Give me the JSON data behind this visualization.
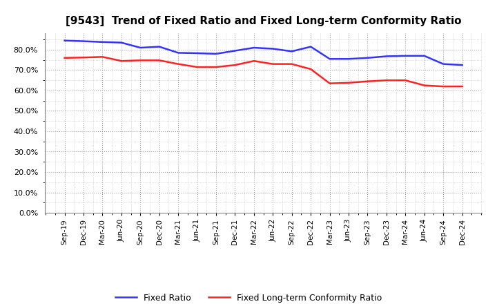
{
  "title": "[9543]  Trend of Fixed Ratio and Fixed Long-term Conformity Ratio",
  "x_labels": [
    "Sep-19",
    "Dec-19",
    "Mar-20",
    "Jun-20",
    "Sep-20",
    "Dec-20",
    "Mar-21",
    "Jun-21",
    "Sep-21",
    "Dec-21",
    "Mar-22",
    "Jun-22",
    "Sep-22",
    "Dec-22",
    "Mar-23",
    "Jun-23",
    "Sep-23",
    "Dec-23",
    "Mar-24",
    "Jun-24",
    "Sep-24",
    "Dec-24"
  ],
  "fixed_ratio": [
    84.5,
    84.2,
    83.8,
    83.5,
    81.0,
    81.5,
    78.5,
    78.3,
    78.0,
    79.5,
    81.0,
    80.5,
    79.2,
    81.5,
    75.5,
    75.5,
    76.0,
    76.8,
    77.0,
    77.0,
    73.0,
    72.5
  ],
  "fixed_lt_ratio": [
    76.0,
    76.2,
    76.5,
    74.5,
    74.8,
    74.8,
    73.0,
    71.5,
    71.5,
    72.5,
    74.5,
    73.0,
    73.0,
    70.5,
    63.5,
    63.8,
    64.5,
    65.0,
    65.0,
    62.5,
    62.0,
    62.0
  ],
  "fixed_ratio_color": "#3333FF",
  "fixed_lt_ratio_color": "#FF2222",
  "ylim": [
    0,
    88
  ],
  "yticks": [
    0,
    10,
    20,
    30,
    40,
    50,
    60,
    70,
    80
  ],
  "background_color": "#FFFFFF",
  "plot_bg_color": "#FFFFFF",
  "grid_color": "#999999",
  "legend_labels": [
    "Fixed Ratio",
    "Fixed Long-term Conformity Ratio"
  ]
}
